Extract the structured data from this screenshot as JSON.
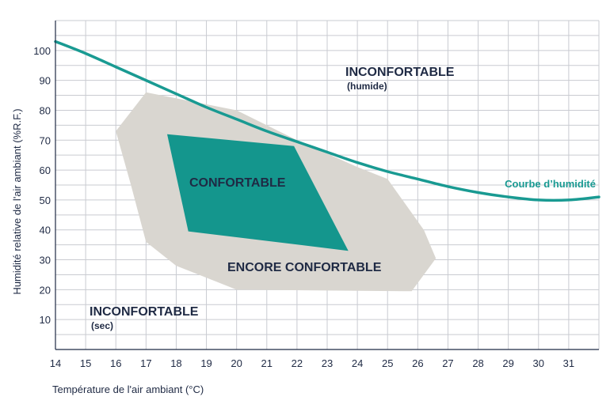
{
  "chart_data": {
    "type": "line",
    "xlabel": "Température de l'air ambiant (°C)",
    "ylabel": "Humidité relative de l'air ambiant (%R.F.)",
    "xlim": [
      14,
      32
    ],
    "ylim": [
      0,
      110
    ],
    "grid": true,
    "x_ticks": [
      "14",
      "15",
      "16",
      "17",
      "18",
      "19",
      "20",
      "21",
      "22",
      "23",
      "24",
      "25",
      "26",
      "27",
      "28",
      "29",
      "30",
      "31"
    ],
    "y_ticks": [
      "10",
      "20",
      "30",
      "40",
      "50",
      "60",
      "70",
      "80",
      "90",
      "100"
    ],
    "series": [
      {
        "name": "Courbe d'humidité",
        "color": "#199a92",
        "points": [
          [
            14,
            103
          ],
          [
            15,
            99
          ],
          [
            16,
            94.5
          ],
          [
            17,
            90
          ],
          [
            18,
            85.5
          ],
          [
            19,
            81
          ],
          [
            20,
            77
          ],
          [
            21,
            73
          ],
          [
            22,
            69.5
          ],
          [
            23,
            66
          ],
          [
            24,
            62.5
          ],
          [
            25,
            59.5
          ],
          [
            26,
            57
          ],
          [
            27,
            54.5
          ],
          [
            28,
            52.5
          ],
          [
            29,
            51
          ],
          [
            30,
            50
          ],
          [
            31,
            50
          ],
          [
            32,
            51
          ]
        ]
      }
    ],
    "regions": [
      {
        "name": "ENCORE CONFORTABLE",
        "color": "#d9d6d0",
        "polygon": [
          [
            17,
            86
          ],
          [
            20,
            80
          ],
          [
            22,
            70
          ],
          [
            24,
            61
          ],
          [
            25,
            57
          ],
          [
            26.2,
            40
          ],
          [
            26.6,
            30.5
          ],
          [
            25.8,
            19.5
          ],
          [
            20,
            20
          ],
          [
            18,
            28
          ],
          [
            17,
            36
          ],
          [
            16.5,
            55
          ],
          [
            16,
            73
          ],
          [
            17,
            86
          ]
        ]
      },
      {
        "name": "CONFORTABLE",
        "color": "#14968d",
        "polygon": [
          [
            17.7,
            72
          ],
          [
            21.9,
            68
          ],
          [
            23.7,
            33
          ],
          [
            18.4,
            39.5
          ]
        ]
      }
    ],
    "zone_labels": {
      "humid_title": "INCONFORTABLE",
      "humid_sub": "(humide)",
      "comfortable": "CONFORTABLE",
      "still_comfortable": "ENCORE CONFORTABLE",
      "dry_title": "INCONFORTABLE",
      "dry_sub": "(sec)",
      "curve": "Courbe d’humidité"
    }
  }
}
